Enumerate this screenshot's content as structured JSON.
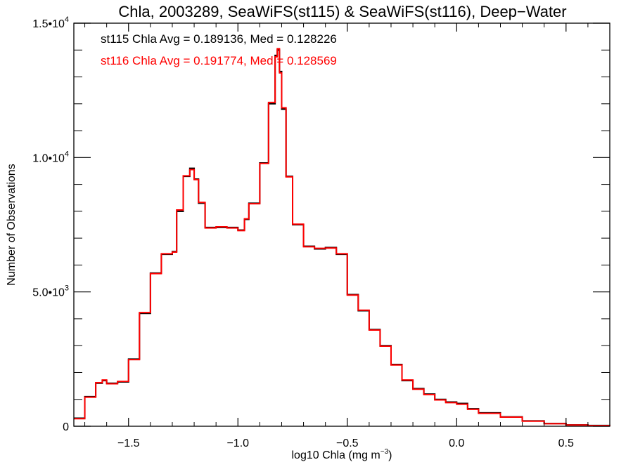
{
  "chart_data": {
    "type": "line",
    "title": "Chla, 2003289, SeaWiFS(st115) & SeaWiFS(st116), Deep−Water",
    "xlabel_main": "log10 Chla (mg m",
    "xlabel_sup": "−3",
    "xlabel_tail": ")",
    "ylabel": "Number of Observations",
    "xlim": [
      -1.75,
      0.7
    ],
    "ylim": [
      0,
      15000
    ],
    "x_ticks": [
      -1.5,
      -1.0,
      -0.5,
      0.0,
      0.5
    ],
    "x_tick_labels": [
      "−1.5",
      "−1.0",
      "−0.5",
      "0.0",
      "0.5"
    ],
    "y_ticks": [
      0,
      5000,
      10000,
      15000
    ],
    "y_tick_labels": [
      {
        "base": "0",
        "exp": ""
      },
      {
        "base": "5.0•10",
        "exp": "3"
      },
      {
        "base": "1.0•10",
        "exp": "4"
      },
      {
        "base": "1.5•10",
        "exp": "4"
      }
    ],
    "annotations": [
      {
        "text": "st115 Chla Avg = 0.189136, Med = 0.128226",
        "color": "#000000"
      },
      {
        "text": "st116 Chla Avg = 0.191774, Med = 0.128569",
        "color": "#ff0000"
      }
    ],
    "series": [
      {
        "color": "#000000",
        "x": [
          -1.75,
          -1.7,
          -1.65,
          -1.62,
          -1.6,
          -1.55,
          -1.5,
          -1.45,
          -1.4,
          -1.35,
          -1.3,
          -1.28,
          -1.25,
          -1.22,
          -1.2,
          -1.18,
          -1.15,
          -1.1,
          -1.05,
          -1.0,
          -0.97,
          -0.95,
          -0.9,
          -0.86,
          -0.83,
          -0.82,
          -0.81,
          -0.8,
          -0.78,
          -0.75,
          -0.7,
          -0.65,
          -0.6,
          -0.55,
          -0.5,
          -0.45,
          -0.4,
          -0.35,
          -0.3,
          -0.25,
          -0.2,
          -0.15,
          -0.1,
          -0.05,
          0.0,
          0.05,
          0.1,
          0.2,
          0.3,
          0.4,
          0.5,
          0.6,
          0.7
        ],
        "y": [
          300,
          1100,
          1600,
          1700,
          1600,
          1650,
          2500,
          4200,
          5700,
          6400,
          6500,
          8000,
          9300,
          9600,
          9200,
          8300,
          7400,
          7400,
          7400,
          7300,
          7700,
          8300,
          9800,
          12000,
          13800,
          14000,
          13200,
          11800,
          9300,
          7500,
          6700,
          6600,
          6650,
          6400,
          4900,
          4300,
          3600,
          3000,
          2300,
          1700,
          1400,
          1200,
          1000,
          900,
          850,
          650,
          500,
          350,
          200,
          100,
          50,
          30,
          20
        ]
      },
      {
        "color": "#ff0000",
        "x": [
          -1.75,
          -1.7,
          -1.65,
          -1.62,
          -1.6,
          -1.55,
          -1.5,
          -1.45,
          -1.4,
          -1.35,
          -1.3,
          -1.28,
          -1.25,
          -1.22,
          -1.2,
          -1.18,
          -1.15,
          -1.1,
          -1.05,
          -1.0,
          -0.97,
          -0.95,
          -0.9,
          -0.86,
          -0.83,
          -0.82,
          -0.81,
          -0.8,
          -0.78,
          -0.75,
          -0.7,
          -0.65,
          -0.6,
          -0.55,
          -0.5,
          -0.45,
          -0.4,
          -0.35,
          -0.3,
          -0.25,
          -0.2,
          -0.15,
          -0.1,
          -0.05,
          0.0,
          0.05,
          0.1,
          0.2,
          0.3,
          0.4,
          0.5,
          0.6,
          0.7
        ],
        "y": [
          280,
          1080,
          1620,
          1720,
          1580,
          1670,
          2480,
          4230,
          5680,
          6420,
          6480,
          8050,
          9320,
          9550,
          9180,
          8330,
          7380,
          7420,
          7380,
          7280,
          7720,
          8280,
          9780,
          12050,
          13750,
          14050,
          13150,
          11850,
          9280,
          7520,
          6680,
          6620,
          6630,
          6420,
          4880,
          4320,
          3580,
          2980,
          2280,
          1720,
          1380,
          1180,
          980,
          880,
          820,
          630,
          480,
          340,
          190,
          95,
          45,
          25,
          15
        ]
      }
    ]
  }
}
